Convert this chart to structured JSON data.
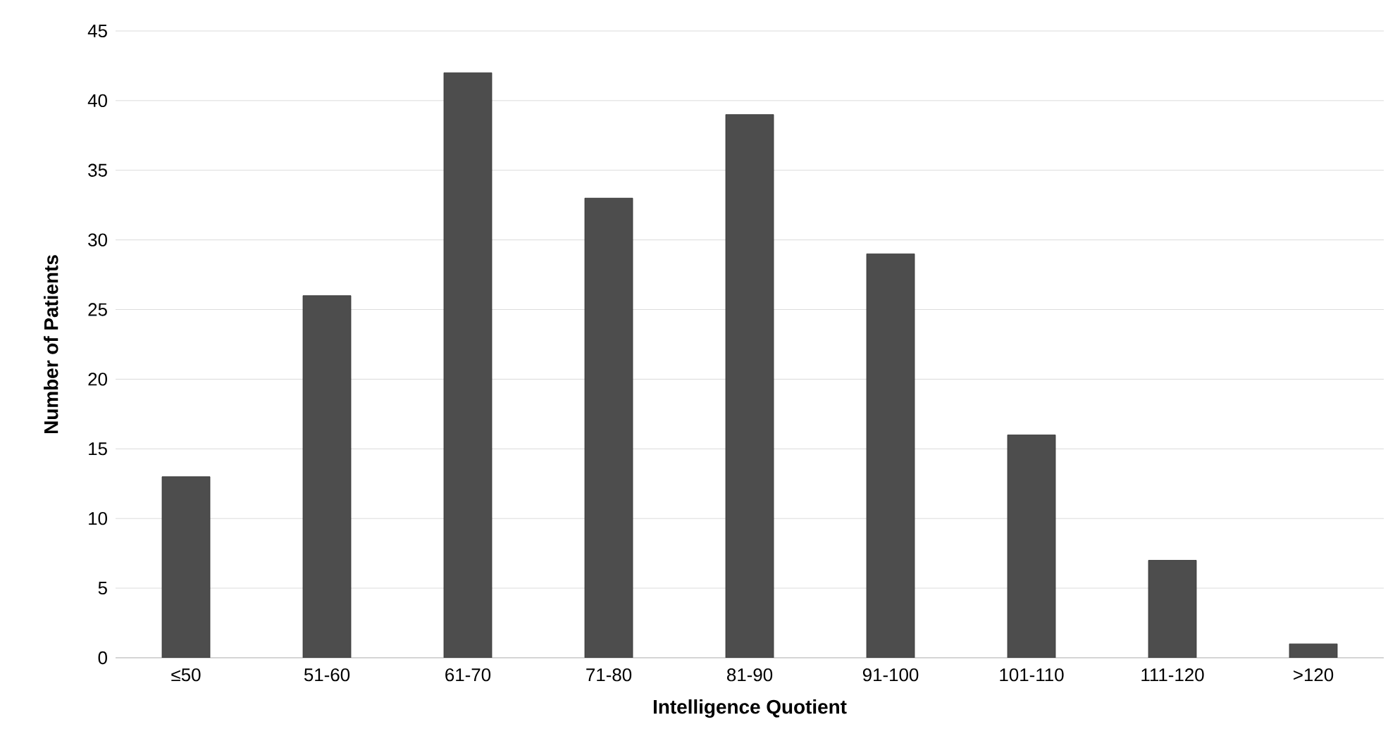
{
  "chart_data": {
    "type": "bar",
    "xlabel": "Intelligence Quotient",
    "ylabel": "Number of Patients",
    "categories": [
      "≤50",
      "51-60",
      "61-70",
      "71-80",
      "81-90",
      "91-100",
      "101-110",
      "111-120",
      ">120"
    ],
    "values": [
      13,
      26,
      42,
      33,
      39,
      29,
      16,
      7,
      1
    ],
    "color": "#4d4d4d",
    "ylim": [
      0,
      45
    ],
    "yticks": [
      0,
      5,
      10,
      15,
      20,
      25,
      30,
      35,
      40,
      45
    ],
    "grid": "y"
  }
}
